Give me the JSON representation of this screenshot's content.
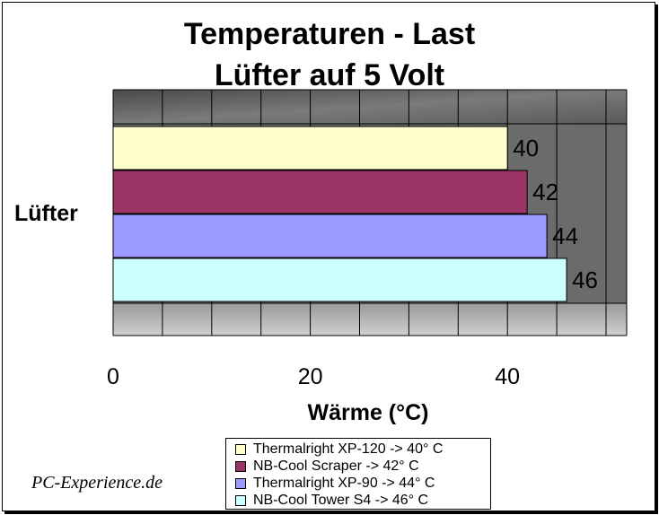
{
  "title_line1": "Temperaturen - Last",
  "title_line2": "Lüfter auf 5 Volt",
  "watermark": "PC-Experience.de",
  "chart_data": {
    "type": "bar",
    "orientation": "horizontal",
    "title": "Temperaturen - Last Lüfter auf 5 Volt",
    "categories": [
      "Lüfter"
    ],
    "xlabel": "Wärme (°C)",
    "ylabel": "",
    "xlim": [
      0,
      50
    ],
    "xticks": [
      0,
      20,
      40
    ],
    "grid": true,
    "legend_position": "bottom",
    "series": [
      {
        "name": "Thermalright XP-120 -> 40° C",
        "values": [
          40
        ],
        "color": "#ffffcc"
      },
      {
        "name": "NB-Cool Scraper -> 42° C",
        "values": [
          42
        ],
        "color": "#993366"
      },
      {
        "name": "Thermalright XP-90 -> 44° C",
        "values": [
          44
        ],
        "color": "#9999ff"
      },
      {
        "name": "NB-Cool Tower S4 -> 46° C",
        "values": [
          46
        ],
        "color": "#ccffff"
      }
    ]
  }
}
